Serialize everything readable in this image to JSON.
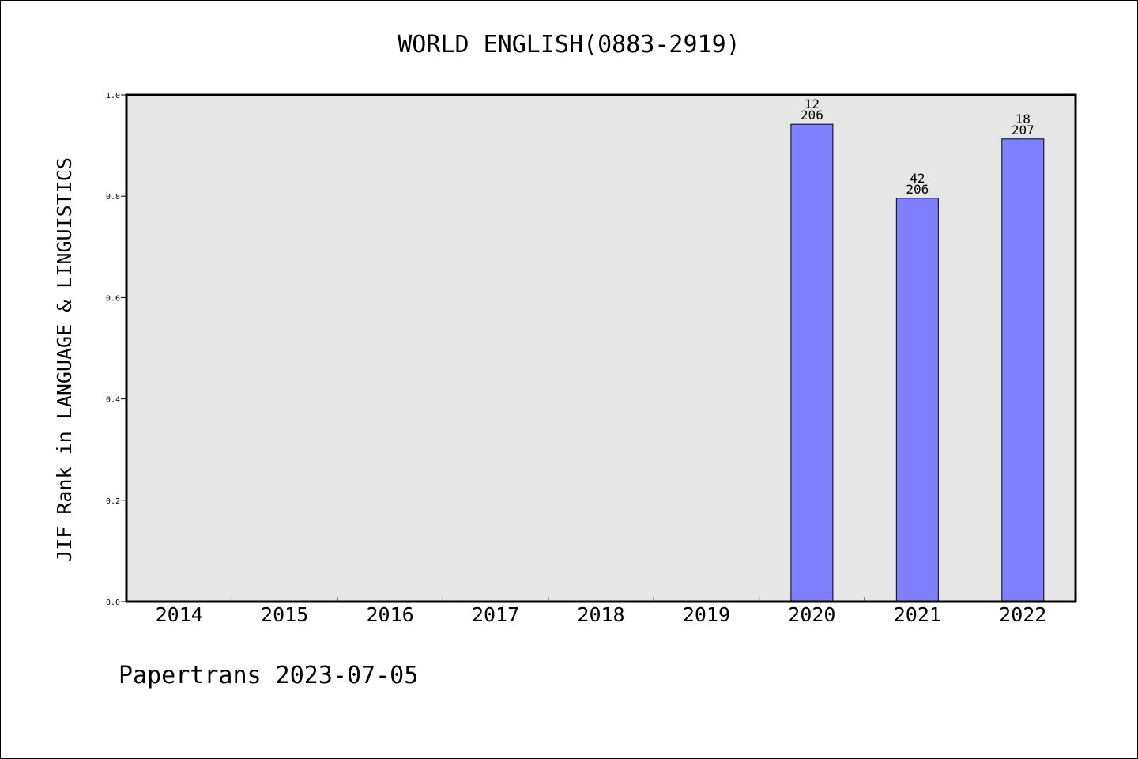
{
  "chart_data": {
    "type": "bar",
    "title": "WORLD ENGLISH(0883-2919)",
    "xlabel": "",
    "ylabel": "JIF Rank in LANGUAGE & LINGUISTICS",
    "ylim": [
      0,
      1.0
    ],
    "yticks": [
      "0.0",
      "0.2",
      "0.4",
      "0.6",
      "0.8",
      "1.0"
    ],
    "categories": [
      "2014",
      "2015",
      "2016",
      "2017",
      "2018",
      "2019",
      "2020",
      "2021",
      "2022"
    ],
    "values": [
      null,
      null,
      null,
      null,
      null,
      null,
      0.942,
      0.796,
      0.913
    ],
    "labels": [
      null,
      null,
      null,
      null,
      null,
      null,
      {
        "rank": "12",
        "total": "206"
      },
      {
        "rank": "42",
        "total": "206"
      },
      {
        "rank": "18",
        "total": "207"
      }
    ],
    "grid": false,
    "colors": {
      "bar": "#8080ff",
      "plot_bg": "#e6e6e6"
    }
  },
  "footer": "Papertrans 2023-07-05"
}
